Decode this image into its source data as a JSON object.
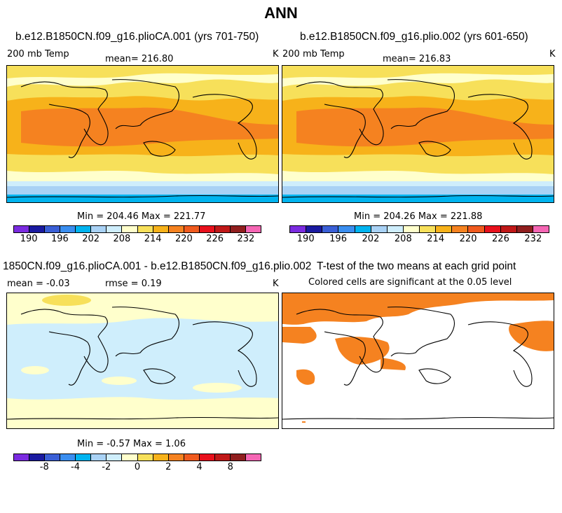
{
  "page_title": "ANN",
  "colors": {
    "abs_scale": [
      "#7b2be0",
      "#1a1aa0",
      "#3a5fd6",
      "#3a8ef0",
      "#00b4f0",
      "#a9d2f5",
      "#cfeefc",
      "#ffffcc",
      "#f7e05a",
      "#f7b21a",
      "#f58220",
      "#f05a1e",
      "#e8101c",
      "#c01818",
      "#901e1e",
      "#f566b4"
    ],
    "diff_scale": [
      "#7b2be0",
      "#1a1aa0",
      "#3a5fd6",
      "#3a8ef0",
      "#00b4f0",
      "#a9d2f5",
      "#cfeefc",
      "#ffffcc",
      "#f7e05a",
      "#f7b21a",
      "#f58220",
      "#f05a1e",
      "#e8101c",
      "#c01818",
      "#901e1e",
      "#f566b4"
    ],
    "significant": "#f58220"
  },
  "chart_data": [
    {
      "type": "heatmap",
      "title": "b.e12.B1850CN.f09_g16.plioCA.001 (yrs 701-750)",
      "field_label": "200 mb Temp",
      "mean_text": "mean= 216.80",
      "units": "K",
      "min": 204.46,
      "max": 221.77,
      "minmax_text": "Min = 204.46 Max = 221.77",
      "colorbar_ticks": [
        "190",
        "196",
        "202",
        "208",
        "214",
        "220",
        "226",
        "232"
      ]
    },
    {
      "type": "heatmap",
      "title": "b.e12.B1850CN.f09_g16.plio.002 (yrs 601-650)",
      "field_label": "200 mb Temp",
      "mean_text": "mean= 216.83",
      "units": "K",
      "min": 204.26,
      "max": 221.88,
      "minmax_text": "Min = 204.26 Max = 221.88",
      "colorbar_ticks": [
        "190",
        "196",
        "202",
        "208",
        "214",
        "220",
        "226",
        "232"
      ]
    },
    {
      "type": "heatmap",
      "title": "1850CN.f09_g16.plioCA.001 - b.e12.B1850CN.f09_g16.plio.002",
      "mean_text": "mean =  -0.03",
      "rmse_text": "rmse =    0.19",
      "units": "K",
      "min": -0.57,
      "max": 1.06,
      "minmax_text": "Min =  -0.57 Max =    1.06",
      "colorbar_ticks": [
        "-8",
        "-4",
        "-2",
        "0",
        "2",
        "4",
        "8"
      ]
    },
    {
      "type": "heatmap",
      "title": "T-test of the two means at each grid point",
      "subtitle": "Colored cells are significant at the 0.05 level",
      "significance_level": 0.05
    }
  ]
}
